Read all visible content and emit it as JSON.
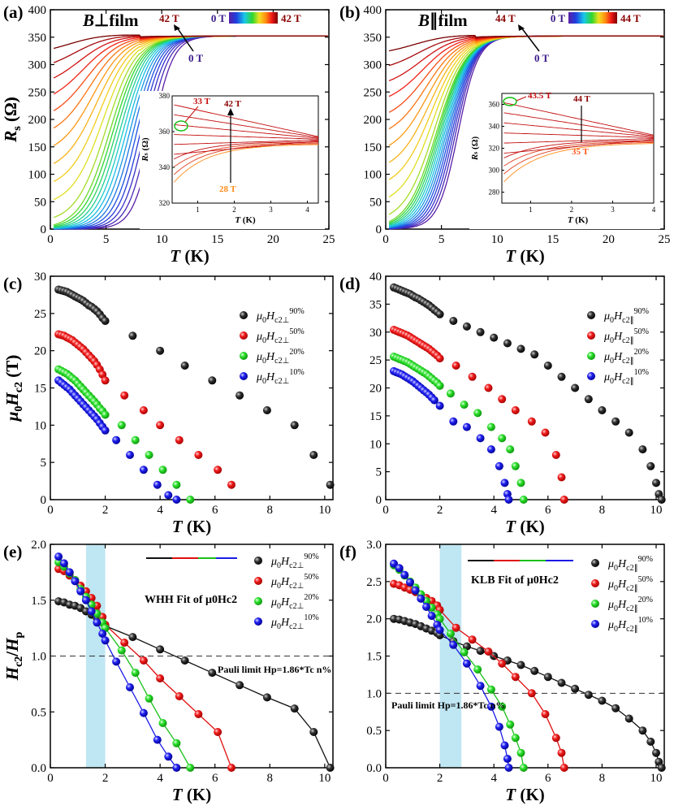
{
  "panels": [
    {
      "id": "a",
      "label": "(a)",
      "title": "B⊥film",
      "ylabel_main": "R",
      "ylabel_sub": "s",
      "ylabel_unit": "(Ω)",
      "xlabel": "T (K)"
    },
    {
      "id": "b",
      "label": "(b)",
      "title": "B∥film",
      "ylabel_main": "R",
      "ylabel_sub": "s",
      "ylabel_unit": "(Ω)",
      "xlabel": "T (K)"
    },
    {
      "id": "c",
      "label": "(c)",
      "ylabel": "μ0Hc2 (T)",
      "xlabel": "T (K)"
    },
    {
      "id": "d",
      "label": "(d)",
      "ylabel": "μ0Hc2 (T)",
      "xlabel": "T (K)"
    },
    {
      "id": "e",
      "label": "(e)",
      "ylabel": "Hc2/Hp",
      "xlabel": "T (K)"
    },
    {
      "id": "f",
      "label": "(f)",
      "ylabel": "Hc2/Hp",
      "xlabel": "T (K)"
    }
  ],
  "annotations": {
    "a_colorbar_low": "0 T",
    "a_colorbar_high": "42 T",
    "a_top": "42 T",
    "a_bottom": "0 T",
    "a_inset_33": "33 T",
    "a_inset_42": "42 T",
    "a_inset_28": "28 T",
    "b_colorbar_low": "0 T",
    "b_colorbar_high": "44 T",
    "b_top": "44 T",
    "b_bottom": "0 T",
    "b_inset_435": "43.5 T",
    "b_inset_44": "44 T",
    "b_inset_35": "35 T",
    "e_fit": "WHH Fit of μ0Hc2",
    "f_fit": "KLB Fit of μ0Hc2",
    "pauli": "Pauli limit Hp=1.86*Tc n%"
  },
  "legend_labels": {
    "perp": [
      "μ0Hc2⊥ 90%",
      "μ0Hc2⊥ 50%",
      "μ0Hc2⊥ 20%",
      "μ0Hc2⊥ 10%"
    ],
    "par": [
      "μ0Hc2∥ 90%",
      "μ0Hc2∥ 50%",
      "μ0Hc2∥ 20%",
      "μ0Hc2∥ 10%"
    ]
  },
  "colors": {
    "p90": "#111111",
    "p50": "#e01010",
    "p20": "#19e019",
    "p10": "#1a1ae6",
    "shade": "#bfe6f3"
  },
  "chart_data": [
    {
      "panel": "a",
      "type": "line",
      "xlabel": "T (K)",
      "ylabel": "Rs (Ω)",
      "xlim": [
        0,
        25
      ],
      "ylim": [
        0,
        400
      ],
      "normal_state": 352,
      "field_range_T": [
        0,
        42
      ],
      "curves": 24,
      "inset": {
        "xlabel": "T (K)",
        "ylabel": "Rs (Ω)",
        "xlim": [
          0.3,
          4.3
        ],
        "ylim": [
          320,
          380
        ]
      }
    },
    {
      "panel": "b",
      "type": "line",
      "xlabel": "T (K)",
      "ylabel": "Rs (Ω)",
      "xlim": [
        0,
        25
      ],
      "ylim": [
        0,
        400
      ],
      "normal_state": 352,
      "field_range_T": [
        0,
        44
      ],
      "curves": 24,
      "inset": {
        "xlabel": "T (K)",
        "ylabel": "Rs (Ω)",
        "xlim": [
          0.3,
          4
        ],
        "ylim": [
          270,
          370
        ]
      }
    },
    {
      "panel": "c",
      "type": "scatter",
      "xlabel": "T (K)",
      "ylabel": "μ0Hc2 (T)",
      "xlim": [
        0,
        10.3
      ],
      "ylim": [
        0,
        30
      ],
      "series": [
        {
          "name": "μ0Hc2⊥ 90%",
          "x": [
            0.3,
            0.4,
            0.5,
            0.6,
            0.7,
            0.8,
            0.9,
            1.0,
            1.1,
            1.2,
            1.3,
            1.4,
            1.5,
            1.6,
            1.7,
            1.8,
            1.9,
            2.0,
            3.0,
            4.0,
            4.9,
            5.9,
            6.9,
            7.9,
            8.9,
            9.6,
            10.2
          ],
          "y": [
            28.2,
            28.1,
            28.0,
            27.9,
            27.7,
            27.5,
            27.3,
            27.1,
            26.9,
            26.7,
            26.4,
            26.1,
            25.9,
            25.6,
            25.3,
            24.9,
            24.4,
            24.0,
            22,
            20,
            18,
            16,
            14,
            12,
            10,
            6,
            2
          ]
        },
        {
          "name": "μ0Hc2⊥ 50%",
          "x": [
            0.3,
            0.4,
            0.5,
            0.6,
            0.7,
            0.8,
            0.9,
            1.0,
            1.1,
            1.2,
            1.3,
            1.4,
            1.5,
            1.6,
            1.7,
            1.8,
            1.9,
            2.0,
            2.7,
            3.4,
            4.0,
            4.7,
            5.4,
            6.1,
            6.6
          ],
          "y": [
            22.2,
            22.1,
            22.0,
            21.8,
            21.6,
            21.4,
            21.1,
            20.8,
            20.5,
            20.2,
            19.8,
            19.4,
            19.0,
            18.6,
            18.1,
            17.5,
            16.8,
            16.0,
            14,
            12,
            10,
            8,
            6,
            4,
            2
          ]
        },
        {
          "name": "μ0Hc2⊥ 20%",
          "x": [
            0.3,
            0.4,
            0.5,
            0.6,
            0.7,
            0.8,
            0.9,
            1.0,
            1.1,
            1.2,
            1.3,
            1.4,
            1.5,
            1.6,
            1.7,
            1.8,
            1.9,
            2.0,
            2.6,
            3.1,
            3.6,
            4.1,
            4.6,
            5.1
          ],
          "y": [
            17.5,
            17.3,
            17.1,
            16.9,
            16.6,
            16.3,
            16.0,
            15.6,
            15.2,
            14.8,
            14.4,
            14.0,
            13.6,
            13.2,
            12.8,
            12.3,
            11.9,
            11.4,
            10,
            8,
            6,
            4,
            2,
            0
          ]
        },
        {
          "name": "μ0Hc2⊥ 10%",
          "x": [
            0.3,
            0.4,
            0.5,
            0.6,
            0.7,
            0.8,
            0.9,
            1.0,
            1.1,
            1.2,
            1.3,
            1.4,
            1.5,
            1.6,
            1.7,
            1.8,
            1.9,
            2.0,
            2.4,
            2.9,
            3.4,
            3.9,
            4.3,
            4.6
          ],
          "y": [
            16.0,
            15.7,
            15.4,
            15.1,
            14.8,
            14.4,
            14.0,
            13.6,
            13.2,
            12.8,
            12.4,
            12.0,
            11.6,
            11.2,
            10.8,
            10.3,
            9.8,
            9.3,
            8,
            6,
            4,
            2,
            0.6,
            0
          ]
        }
      ]
    },
    {
      "panel": "d",
      "type": "scatter",
      "xlabel": "T (K)",
      "ylabel": "μ0Hc2 (T)",
      "xlim": [
        0,
        10.3
      ],
      "ylim": [
        0,
        40
      ],
      "series": [
        {
          "name": "μ0Hc2∥ 90%",
          "x": [
            0.3,
            0.4,
            0.5,
            0.6,
            0.7,
            0.8,
            0.9,
            1.0,
            1.1,
            1.2,
            1.3,
            1.4,
            1.5,
            1.6,
            1.7,
            1.8,
            1.9,
            2.0,
            2.5,
            3.0,
            3.5,
            4.0,
            4.5,
            5.0,
            5.5,
            6.0,
            6.5,
            7.0,
            7.5,
            8.0,
            8.5,
            9.0,
            9.5,
            9.8,
            10.0,
            10.1,
            10.2
          ],
          "y": [
            38,
            37.8,
            37.6,
            37.4,
            37.2,
            37.0,
            36.8,
            36.5,
            36.2,
            36.0,
            35.7,
            35.4,
            35.1,
            34.8,
            34.4,
            34.0,
            33.6,
            33.2,
            32,
            31,
            30,
            29,
            28,
            27,
            26,
            24,
            22,
            20,
            18,
            16,
            14,
            12,
            9,
            6,
            3,
            1,
            0
          ]
        },
        {
          "name": "μ0Hc2∥ 50%",
          "x": [
            0.3,
            0.4,
            0.5,
            0.6,
            0.7,
            0.8,
            0.9,
            1.0,
            1.1,
            1.2,
            1.3,
            1.4,
            1.5,
            1.6,
            1.7,
            1.8,
            1.9,
            2.0,
            2.6,
            3.2,
            3.8,
            4.3,
            4.8,
            5.4,
            5.9,
            6.3,
            6.5,
            6.6
          ],
          "y": [
            30.4,
            30.2,
            30.0,
            29.8,
            29.6,
            29.4,
            29.1,
            28.8,
            28.5,
            28.2,
            27.9,
            27.6,
            27.3,
            27.0,
            26.6,
            26.2,
            25.8,
            25.3,
            24,
            22,
            20,
            18,
            16,
            14,
            12,
            8,
            4,
            0
          ]
        },
        {
          "name": "μ0Hc2∥ 20%",
          "x": [
            0.3,
            0.4,
            0.5,
            0.6,
            0.7,
            0.8,
            0.9,
            1.0,
            1.1,
            1.2,
            1.3,
            1.4,
            1.5,
            1.6,
            1.7,
            1.8,
            1.9,
            2.0,
            2.4,
            2.9,
            3.4,
            3.9,
            4.3,
            4.6,
            4.8,
            5.0,
            5.1
          ],
          "y": [
            25.6,
            25.4,
            25.2,
            25.0,
            24.8,
            24.6,
            24.3,
            24.0,
            23.7,
            23.4,
            23.1,
            22.8,
            22.5,
            22.1,
            21.7,
            21.3,
            20.9,
            20.4,
            19,
            17,
            15.5,
            13,
            11,
            9,
            6,
            3,
            0
          ]
        },
        {
          "name": "μ0Hc2∥ 10%",
          "x": [
            0.3,
            0.4,
            0.5,
            0.6,
            0.7,
            0.8,
            0.9,
            1.0,
            1.1,
            1.2,
            1.3,
            1.4,
            1.5,
            1.6,
            1.7,
            1.8,
            2.0,
            2.5,
            3.0,
            3.5,
            3.9,
            4.2,
            4.4,
            4.5,
            4.55
          ],
          "y": [
            23.0,
            22.8,
            22.6,
            22.4,
            22.1,
            21.8,
            21.5,
            21.2,
            20.8,
            20.4,
            20.0,
            19.6,
            19.2,
            18.8,
            18.3,
            17.8,
            16.8,
            14,
            13,
            11,
            9,
            6,
            3,
            1,
            0
          ]
        }
      ]
    },
    {
      "panel": "e",
      "type": "scatter",
      "xlabel": "T (K)",
      "ylabel": "Hc2/Hp",
      "xlim": [
        0,
        10.3
      ],
      "ylim": [
        0,
        2.0
      ],
      "pauli_limit": 1.0,
      "shaded_T": [
        1.3,
        2.0
      ],
      "series": [
        {
          "name": "μ0Hc2⊥ 90%",
          "x": [
            0.3,
            0.5,
            0.7,
            0.9,
            1.1,
            1.3,
            1.5,
            1.7,
            1.9,
            2.0,
            3.0,
            4.0,
            4.9,
            5.9,
            6.9,
            7.9,
            8.9,
            9.6,
            10.2
          ],
          "y": [
            1.49,
            1.48,
            1.46,
            1.45,
            1.43,
            1.4,
            1.37,
            1.34,
            1.3,
            1.27,
            1.17,
            1.06,
            0.96,
            0.85,
            0.74,
            0.63,
            0.53,
            0.32,
            0.0
          ]
        },
        {
          "name": "μ0Hc2⊥ 50%",
          "x": [
            0.3,
            0.5,
            0.7,
            0.9,
            1.1,
            1.3,
            1.5,
            1.7,
            1.9,
            2.0,
            2.7,
            3.4,
            4.0,
            4.7,
            5.4,
            6.1,
            6.6
          ],
          "y": [
            1.78,
            1.76,
            1.72,
            1.68,
            1.63,
            1.58,
            1.52,
            1.45,
            1.35,
            1.28,
            1.12,
            0.96,
            0.8,
            0.64,
            0.48,
            0.32,
            0.0
          ]
        },
        {
          "name": "μ0Hc2⊥ 20%",
          "x": [
            0.3,
            0.5,
            0.7,
            0.9,
            1.1,
            1.3,
            1.5,
            1.7,
            1.9,
            2.0,
            2.6,
            3.1,
            3.6,
            4.1,
            4.6,
            5.1
          ],
          "y": [
            1.84,
            1.8,
            1.74,
            1.68,
            1.6,
            1.53,
            1.46,
            1.38,
            1.3,
            1.25,
            1.05,
            0.85,
            0.62,
            0.4,
            0.22,
            0.0
          ]
        },
        {
          "name": "μ0Hc2⊥ 10%",
          "x": [
            0.3,
            0.5,
            0.7,
            0.9,
            1.1,
            1.3,
            1.5,
            1.7,
            1.9,
            2.0,
            2.4,
            2.9,
            3.4,
            3.9,
            4.3,
            4.6
          ],
          "y": [
            1.89,
            1.83,
            1.75,
            1.67,
            1.58,
            1.5,
            1.4,
            1.3,
            1.2,
            1.14,
            0.95,
            0.72,
            0.49,
            0.25,
            0.1,
            0.0
          ]
        }
      ]
    },
    {
      "panel": "f",
      "type": "scatter",
      "xlabel": "T (K)",
      "ylabel": "Hc2/Hp",
      "xlim": [
        0,
        10.3
      ],
      "ylim": [
        0,
        3.0
      ],
      "pauli_limit": 1.0,
      "shaded_T": [
        2.0,
        2.8
      ],
      "series": [
        {
          "name": "μ0Hc2∥ 90%",
          "x": [
            0.3,
            0.5,
            0.7,
            0.9,
            1.1,
            1.3,
            1.5,
            1.7,
            1.9,
            2.0,
            2.5,
            3.0,
            3.5,
            4.0,
            4.5,
            5.0,
            5.5,
            6.0,
            6.5,
            7.0,
            7.5,
            8.0,
            8.5,
            9.0,
            9.5,
            9.8,
            10.0,
            10.1,
            10.2
          ],
          "y": [
            2.0,
            1.99,
            1.97,
            1.95,
            1.93,
            1.9,
            1.87,
            1.84,
            1.81,
            1.78,
            1.7,
            1.63,
            1.57,
            1.5,
            1.44,
            1.38,
            1.3,
            1.22,
            1.14,
            1.06,
            0.98,
            0.9,
            0.8,
            0.66,
            0.5,
            0.35,
            0.2,
            0.08,
            0.0
          ]
        },
        {
          "name": "μ0Hc2∥ 50%",
          "x": [
            0.3,
            0.5,
            0.7,
            0.9,
            1.1,
            1.3,
            1.5,
            1.7,
            1.9,
            2.0,
            2.6,
            3.2,
            3.8,
            4.3,
            4.8,
            5.4,
            5.9,
            6.3,
            6.5,
            6.6
          ],
          "y": [
            2.47,
            2.45,
            2.42,
            2.39,
            2.36,
            2.32,
            2.28,
            2.24,
            2.18,
            2.12,
            1.88,
            1.72,
            1.56,
            1.4,
            1.22,
            1.0,
            0.72,
            0.4,
            0.2,
            0.0
          ]
        },
        {
          "name": "μ0Hc2∥ 20%",
          "x": [
            0.3,
            0.5,
            0.7,
            0.9,
            1.1,
            1.3,
            1.5,
            1.7,
            1.9,
            2.0,
            2.4,
            2.9,
            3.4,
            3.9,
            4.3,
            4.6,
            4.8,
            5.0,
            5.1
          ],
          "y": [
            2.72,
            2.66,
            2.58,
            2.5,
            2.42,
            2.33,
            2.24,
            2.15,
            2.06,
            2.0,
            1.8,
            1.55,
            1.32,
            1.05,
            0.82,
            0.58,
            0.4,
            0.2,
            0.0
          ]
        },
        {
          "name": "μ0Hc2∥ 10%",
          "x": [
            0.3,
            0.5,
            0.7,
            0.9,
            1.1,
            1.3,
            1.5,
            1.7,
            1.9,
            2.0,
            2.5,
            3.0,
            3.5,
            3.9,
            4.2,
            4.4,
            4.5,
            4.55
          ],
          "y": [
            2.74,
            2.68,
            2.59,
            2.49,
            2.38,
            2.27,
            2.16,
            2.04,
            1.92,
            1.85,
            1.65,
            1.4,
            1.1,
            0.82,
            0.55,
            0.3,
            0.12,
            0.0
          ]
        }
      ]
    }
  ]
}
